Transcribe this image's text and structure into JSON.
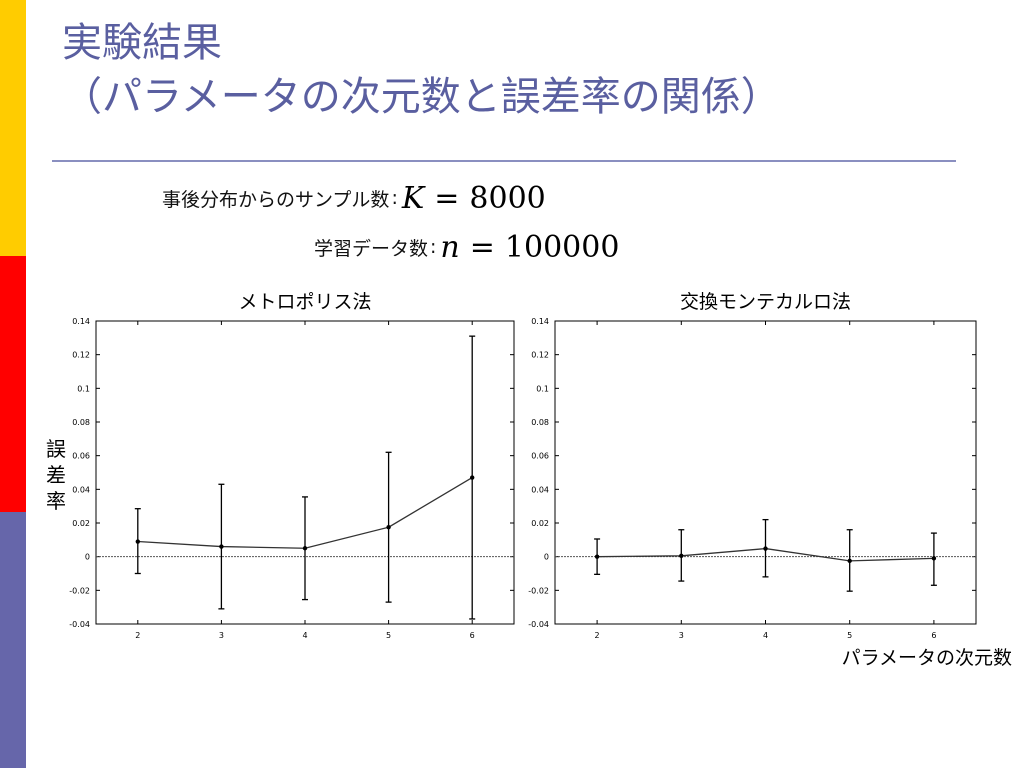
{
  "slide": {
    "title_line1": "実験結果",
    "title_line2": "（パラメータの次元数と誤差率の関係）",
    "accent_colors": [
      "#ffcc00",
      "#ff0000",
      "#6666aa"
    ],
    "title_color": "#5a5fa0"
  },
  "params": [
    {
      "label": "事後分布からのサンプル数",
      "sep": ":",
      "symbol": "K",
      "equals": "=",
      "value": "8000"
    },
    {
      "label": "学習データ数",
      "sep": ":",
      "symbol": "n",
      "equals": "=",
      "value": "100000"
    }
  ],
  "ylabel_shared": [
    "誤",
    "差",
    "率"
  ],
  "xlabel_shared": "パラメータの次元数",
  "chart_data": [
    {
      "type": "line",
      "title": "メトロポリス法",
      "xlabel": "",
      "ylabel": "",
      "xlim": [
        1.5,
        6.5
      ],
      "ylim": [
        -0.04,
        0.14
      ],
      "grid": false,
      "xticks": [
        2,
        3,
        4,
        5,
        6
      ],
      "yticks": [
        -0.04,
        -0.02,
        0,
        0.02,
        0.04,
        0.06,
        0.08,
        0.1,
        0.12,
        0.14
      ],
      "ytick_labels": [
        "-0.04",
        "-0.02",
        "0",
        "0.02",
        "0.04",
        "0.06",
        "0.08",
        "0.1",
        "0.12",
        "0.14"
      ],
      "zero_line": true,
      "series": [
        {
          "x": [
            2,
            3,
            4,
            5,
            6
          ],
          "y": [
            0.009,
            0.006,
            0.005,
            0.0175,
            0.047
          ],
          "err_low": [
            -0.01,
            -0.031,
            -0.0255,
            -0.027,
            -0.037
          ],
          "err_high": [
            0.0285,
            0.043,
            0.0355,
            0.062,
            0.131
          ]
        }
      ]
    },
    {
      "type": "line",
      "title": "交換モンテカルロ法",
      "xlabel": "",
      "ylabel": "",
      "xlim": [
        1.5,
        6.5
      ],
      "ylim": [
        -0.04,
        0.14
      ],
      "grid": false,
      "xticks": [
        2,
        3,
        4,
        5,
        6
      ],
      "yticks": [
        -0.04,
        -0.02,
        0,
        0.02,
        0.04,
        0.06,
        0.08,
        0.1,
        0.12,
        0.14
      ],
      "ytick_labels": [
        "-0.04",
        "-0.02",
        "0",
        "0.02",
        "0.04",
        "0.06",
        "0.08",
        "0.1",
        "0.12",
        "0.14"
      ],
      "zero_line": true,
      "series": [
        {
          "x": [
            2,
            3,
            4,
            5,
            6
          ],
          "y": [
            0.0,
            0.0005,
            0.0048,
            -0.0025,
            -0.001
          ],
          "err_low": [
            -0.0105,
            -0.0145,
            -0.012,
            -0.0205,
            -0.017
          ],
          "err_high": [
            0.0105,
            0.016,
            0.022,
            0.016,
            0.014
          ]
        }
      ]
    }
  ]
}
